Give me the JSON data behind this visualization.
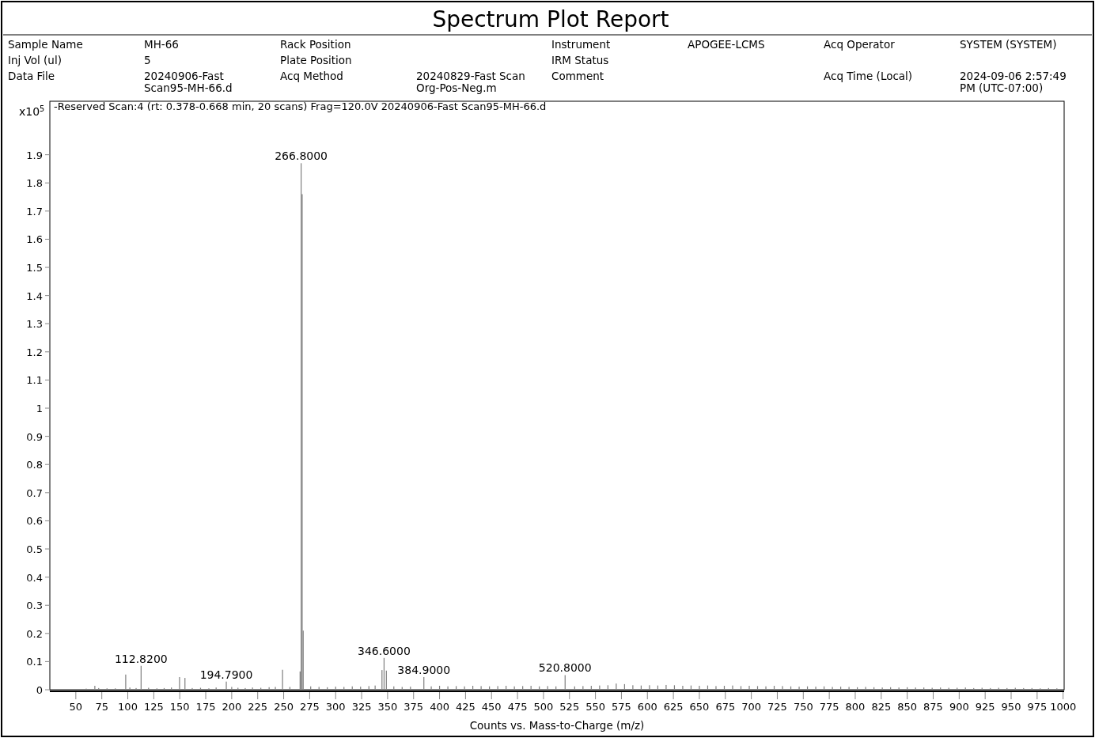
{
  "chart_data": {
    "type": "bar",
    "title": "Spectrum Plot Report",
    "subtitle": "-Reserved Scan:4 (rt: 0.378-0.668 min, 20 scans) Frag=120.0V 20240906-Fast Scan95-MH-66.d",
    "xlabel": "Counts vs. Mass-to-Charge (m/z)",
    "ylabel": "x10$^{5}$",
    "xlim": [
      25,
      1001
    ],
    "ylim": [
      0,
      2.09
    ],
    "xticks": [
      50,
      75,
      100,
      125,
      150,
      175,
      200,
      225,
      250,
      275,
      300,
      325,
      350,
      375,
      400,
      425,
      450,
      475,
      500,
      525,
      550,
      575,
      600,
      625,
      650,
      675,
      700,
      725,
      750,
      775,
      800,
      825,
      850,
      875,
      900,
      925,
      950,
      975,
      1000
    ],
    "yticks": [
      0,
      0.1,
      0.2,
      0.3,
      0.4,
      0.5,
      0.6,
      0.7,
      0.8,
      0.9,
      1,
      1.1,
      1.2,
      1.3,
      1.4,
      1.5,
      1.6,
      1.7,
      1.8,
      1.9
    ],
    "grid": false,
    "series": [
      {
        "color": "#7f7f7f",
        "x": [
          60,
          68.3,
          72,
          80,
          88,
          98,
          102,
          108,
          112.8,
          120,
          128,
          135,
          142,
          149.8,
          155,
          162,
          170,
          178,
          185,
          194.8,
          200,
          206,
          213,
          220,
          228,
          236,
          242,
          248.9,
          256,
          265.8,
          266.8,
          267.8,
          268.8,
          276,
          284,
          292,
          300,
          308,
          316,
          324,
          332,
          338,
          344.6,
          346.6,
          348.8,
          356,
          364,
          372,
          384.9,
          392,
          400,
          408,
          416,
          424,
          432,
          440,
          448,
          456,
          464,
          472,
          480,
          488,
          496,
          504,
          512,
          520.8,
          530,
          538,
          546,
          554,
          562,
          570,
          578,
          586,
          594,
          602,
          610,
          618,
          626,
          634,
          642,
          650,
          658,
          666,
          674,
          682,
          690,
          698,
          706,
          714,
          722,
          730,
          738,
          746,
          754,
          762,
          770,
          778,
          786,
          794,
          802,
          810,
          818,
          826,
          834,
          842,
          850,
          858,
          866,
          874,
          882,
          890,
          898,
          906,
          914,
          922,
          930,
          938,
          946,
          954,
          962,
          970,
          978,
          986,
          994
        ],
        "values": [
          0.004,
          0.014,
          0.006,
          0.005,
          0.005,
          0.054,
          0.008,
          0.006,
          0.085,
          0.007,
          0.005,
          0.006,
          0.008,
          0.045,
          0.042,
          0.006,
          0.007,
          0.005,
          0.008,
          0.029,
          0.01,
          0.007,
          0.006,
          0.008,
          0.007,
          0.009,
          0.01,
          0.071,
          0.01,
          0.065,
          1.87,
          1.76,
          0.21,
          0.012,
          0.01,
          0.009,
          0.011,
          0.01,
          0.012,
          0.011,
          0.013,
          0.015,
          0.07,
          0.113,
          0.068,
          0.012,
          0.01,
          0.011,
          0.045,
          0.012,
          0.014,
          0.012,
          0.013,
          0.012,
          0.014,
          0.013,
          0.012,
          0.013,
          0.014,
          0.012,
          0.013,
          0.014,
          0.012,
          0.013,
          0.012,
          0.052,
          0.012,
          0.013,
          0.014,
          0.015,
          0.016,
          0.022,
          0.02,
          0.016,
          0.015,
          0.016,
          0.015,
          0.017,
          0.016,
          0.014,
          0.015,
          0.014,
          0.015,
          0.013,
          0.014,
          0.015,
          0.013,
          0.014,
          0.013,
          0.012,
          0.014,
          0.013,
          0.012,
          0.011,
          0.012,
          0.011,
          0.012,
          0.01,
          0.011,
          0.01,
          0.009,
          0.01,
          0.009,
          0.008,
          0.009,
          0.008,
          0.009,
          0.008,
          0.008,
          0.007,
          0.008,
          0.007,
          0.007,
          0.008,
          0.006,
          0.007,
          0.006,
          0.007,
          0.006,
          0.007,
          0.006,
          0.006,
          0.005,
          0.006,
          0.005
        ]
      }
    ],
    "annotations": [
      "Sample Name",
      "MH-66",
      "Rack Position",
      "Instrument",
      "APOGEE-LCMS",
      "Acq Operator",
      "SYSTEM (SYSTEM)",
      "Inj Vol (ul)",
      "5",
      "Plate Position",
      "IRM Status",
      "Data File",
      "20240906-Fast Scan95-MH-66.d",
      "Acq Method",
      "20240829-Fast Scan Org-Pos-Neg.m",
      "Comment",
      "Acq Time (Local)",
      "2024-09-06 2:57:49 PM (UTC-07:00)",
      {
        "text": "112.8200",
        "x": 112.8,
        "y": 0.085
      },
      {
        "text": "194.7900",
        "x": 194.8,
        "y": 0.029
      },
      {
        "text": "266.8000",
        "x": 266.8,
        "y": 1.87
      },
      {
        "text": "346.6000",
        "x": 346.6,
        "y": 0.113
      },
      {
        "text": "384.9000",
        "x": 384.9,
        "y": 0.045
      },
      {
        "text": "520.8000",
        "x": 520.8,
        "y": 0.052
      }
    ]
  }
}
